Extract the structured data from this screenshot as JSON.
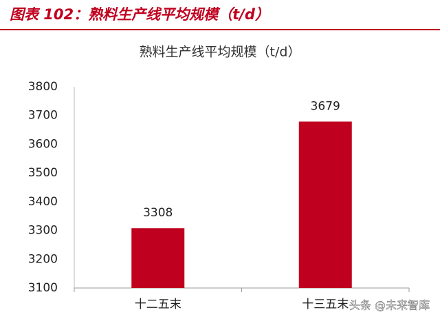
{
  "caption": "图表 102：熟料生产线平均规模（t/d）",
  "watermark": "头条 @未来智库",
  "chart_data": {
    "type": "bar",
    "title": "熟料生产线平均规模（t/d）",
    "categories": [
      "十二五末",
      "十三五末"
    ],
    "values": [
      3308,
      3679
    ],
    "color": "#c0001f",
    "ylim": [
      3100,
      3800
    ],
    "yticks": [
      3100,
      3200,
      3300,
      3400,
      3500,
      3600,
      3700,
      3800
    ],
    "grid": false
  }
}
